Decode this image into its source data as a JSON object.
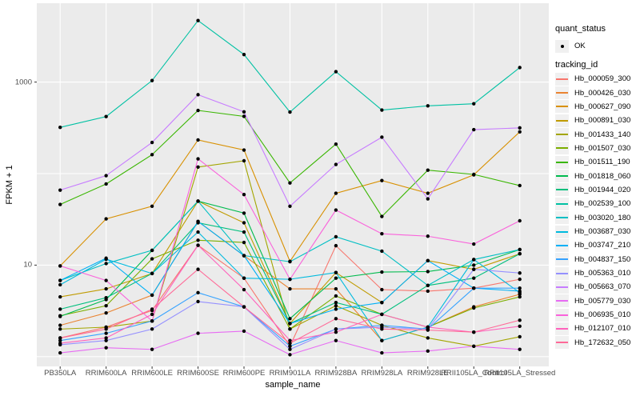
{
  "chart_data": {
    "type": "line",
    "title": "",
    "xlabel": "sample_name",
    "ylabel": "FPKM + 1",
    "y_scale": "log10",
    "ylim": [
      0.95,
      7300
    ],
    "y_gridlines": [
      1,
      10,
      100,
      1000
    ],
    "y_tick_labels": [
      {
        "value": 1000,
        "label": "1000"
      },
      {
        "value": 10,
        "label": "10"
      }
    ],
    "grid": "major-white-on-gray",
    "panel_background": "#EBEBEB",
    "gridline_color": "#FFFFFF",
    "point_color": "#000000",
    "axis_text_color": "#4D4D4D",
    "legend_position": "right",
    "categories": [
      "PB350LA",
      "RRIM600LA",
      "RRIM600LE",
      "RRIM600SE",
      "RRIM600PE",
      "RRIM901LA",
      "RRIM928BA",
      "RRIM928LA",
      "RRIM928LE",
      "RRII105LA_Control",
      "RRII105LA_Stressed"
    ],
    "legend": {
      "quant_status_title": "quant_status",
      "quant_status_items": [
        {
          "label": "OK",
          "glyph": "black-point"
        }
      ],
      "tracking_id_title": "tracking_id"
    },
    "series": [
      {
        "name": "Hb_000059_300",
        "color": "#F8766D",
        "quant_status": "OK",
        "values": [
          1.6,
          2.1,
          3.2,
          16.5,
          7.2,
          1.3,
          16.3,
          5.4,
          5.2,
          5.6,
          7.0
        ]
      },
      {
        "name": "Hb_000426_030",
        "color": "#EA8331",
        "quant_status": "OK",
        "values": [
          2.2,
          3.0,
          4.7,
          30,
          12.7,
          5.5,
          5.5,
          1.5,
          2.1,
          3.5,
          4.8
        ]
      },
      {
        "name": "Hb_000627_090",
        "color": "#D89000",
        "quant_status": "OK",
        "values": [
          9.8,
          32,
          44,
          233,
          181,
          11,
          61,
          84,
          61,
          97,
          286
        ]
      },
      {
        "name": "Hb_000891_030",
        "color": "#C09B00",
        "quant_status": "OK",
        "values": [
          4.5,
          5.5,
          8.1,
          50,
          29,
          2.3,
          8.3,
          3.9,
          11.2,
          9.0,
          13.3
        ]
      },
      {
        "name": "Hb_001433_140",
        "color": "#A3A500",
        "quant_status": "OK",
        "values": [
          2.0,
          2.1,
          2.45,
          118,
          138,
          2.0,
          3.6,
          2.2,
          1.6,
          1.3,
          1.65
        ]
      },
      {
        "name": "Hb_001507_030",
        "color": "#7CAE00",
        "quant_status": "OK",
        "values": [
          2.8,
          3.6,
          11.7,
          18.7,
          17.7,
          2.0,
          4.6,
          2.9,
          2.1,
          3.4,
          4.5
        ]
      },
      {
        "name": "Hb_001511_190",
        "color": "#39B600",
        "quant_status": "OK",
        "values": [
          46,
          77,
          161,
          490,
          422,
          79,
          210,
          34,
          109,
          98,
          74
        ]
      },
      {
        "name": "Hb_001818_060",
        "color": "#00BB4E",
        "quant_status": "OK",
        "values": [
          2.75,
          4.2,
          14.5,
          50,
          37,
          2.6,
          7.2,
          8.4,
          8.5,
          10,
          14.8
        ]
      },
      {
        "name": "Hb_001944_020",
        "color": "#00BF7D",
        "quant_status": "OK",
        "values": [
          3.3,
          4.4,
          8.1,
          29,
          23,
          2.3,
          3.9,
          2.9,
          6.0,
          7.2,
          13.3
        ]
      },
      {
        "name": "Hb_002539_100",
        "color": "#00C1A3",
        "quant_status": "OK",
        "values": [
          320,
          420,
          1040,
          4700,
          2000,
          470,
          1300,
          495,
          550,
          580,
          1440
        ]
      },
      {
        "name": "Hb_003020_180",
        "color": "#00BFC4",
        "quant_status": "OK",
        "values": [
          6.8,
          10.4,
          14.5,
          50,
          12.7,
          10.9,
          20.4,
          14.2,
          6.0,
          11.5,
          14.8
        ]
      },
      {
        "name": "Hb_003687_030",
        "color": "#00BADE",
        "quant_status": "OK",
        "values": [
          6.1,
          11.6,
          8.1,
          23,
          7.2,
          7.0,
          8.3,
          1.5,
          2.1,
          11.5,
          5.0
        ]
      },
      {
        "name": "Hb_003747_210",
        "color": "#00B0F6",
        "quant_status": "OK",
        "values": [
          6.8,
          11.9,
          4.7,
          30,
          12.7,
          2.3,
          3.3,
          3.9,
          11.2,
          5.6,
          5.2
        ]
      },
      {
        "name": "Hb_004837_150",
        "color": "#35A2FF",
        "quant_status": "OK",
        "values": [
          1.5,
          1.8,
          2.45,
          5.0,
          3.5,
          1.3,
          2.0,
          2.2,
          2.0,
          5.6,
          5.6
        ]
      },
      {
        "name": "Hb_005363_010",
        "color": "#9590FF",
        "quant_status": "OK",
        "values": [
          1.35,
          1.5,
          2.0,
          4.0,
          3.5,
          1.2,
          2.0,
          2.1,
          2.0,
          9.0,
          8.2
        ]
      },
      {
        "name": "Hb_005663_070",
        "color": "#C77CFF",
        "quant_status": "OK",
        "values": [
          66,
          95,
          219,
          728,
          473,
          44,
          126,
          250,
          53,
          302,
          316
        ]
      },
      {
        "name": "Hb_005779_030",
        "color": "#E76BF3",
        "quant_status": "OK",
        "values": [
          1.1,
          1.25,
          1.2,
          1.8,
          1.9,
          1.05,
          1.5,
          1.1,
          1.15,
          1.3,
          1.2
        ]
      },
      {
        "name": "Hb_006935_010",
        "color": "#FA62DB",
        "quant_status": "OK",
        "values": [
          9.8,
          6.8,
          2.45,
          145,
          59,
          7.0,
          40,
          22,
          20.7,
          17,
          30.5
        ]
      },
      {
        "name": "Hb_012107_010",
        "color": "#FF62BC",
        "quant_status": "OK",
        "values": [
          1.4,
          1.6,
          2.9,
          16.5,
          5.4,
          1.5,
          1.85,
          2.9,
          2.1,
          1.85,
          2.15
        ]
      },
      {
        "name": "Hb_172632_050",
        "color": "#FF6A98",
        "quant_status": "OK",
        "values": [
          1.6,
          2.0,
          3.3,
          9.0,
          3.5,
          1.4,
          2.6,
          2.0,
          1.95,
          1.85,
          2.5
        ]
      }
    ]
  }
}
